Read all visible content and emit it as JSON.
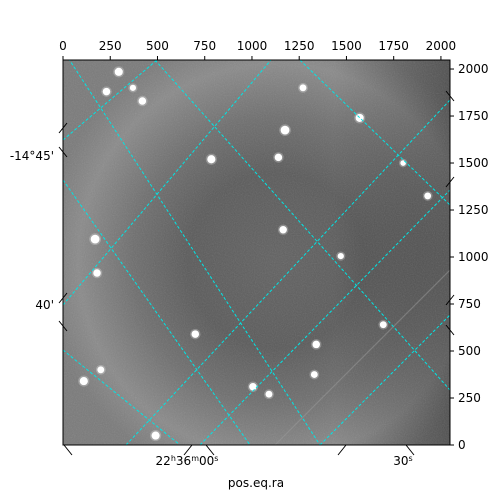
{
  "chart_data": {
    "type": "heatmap",
    "title": "",
    "xlabel": "pos.eq.ra",
    "ylabel": "",
    "pixel_axes": {
      "x": {
        "range": [
          0,
          2048
        ],
        "ticks": [
          0,
          250,
          500,
          750,
          1000,
          1250,
          1500,
          1750,
          2000
        ],
        "label_side": "top"
      },
      "y": {
        "range": [
          0,
          2048
        ],
        "ticks": [
          0,
          250,
          500,
          750,
          1000,
          1250,
          1500,
          1750,
          2000
        ],
        "label_side": "right"
      }
    },
    "world_labels": {
      "ra": [
        "22h36m00s",
        "30s"
      ],
      "dec": [
        "-14°45'",
        "40'"
      ]
    },
    "grid": true,
    "grid_color": "#00e5e5",
    "image_colormap": "gray",
    "stars": [
      {
        "x": 295,
        "y": 1985,
        "brightness": 0.9
      },
      {
        "x": 230,
        "y": 1880,
        "brightness": 0.8
      },
      {
        "x": 420,
        "y": 1830,
        "brightness": 0.8
      },
      {
        "x": 1175,
        "y": 1675,
        "brightness": 1.0
      },
      {
        "x": 1570,
        "y": 1740,
        "brightness": 0.9
      },
      {
        "x": 785,
        "y": 1520,
        "brightness": 0.9
      },
      {
        "x": 1140,
        "y": 1530,
        "brightness": 0.8
      },
      {
        "x": 1165,
        "y": 1145,
        "brightness": 0.8
      },
      {
        "x": 170,
        "y": 1095,
        "brightness": 1.0
      },
      {
        "x": 180,
        "y": 915,
        "brightness": 0.8
      },
      {
        "x": 700,
        "y": 590,
        "brightness": 0.8
      },
      {
        "x": 1340,
        "y": 535,
        "brightness": 0.8
      },
      {
        "x": 1330,
        "y": 375,
        "brightness": 0.7
      },
      {
        "x": 110,
        "y": 340,
        "brightness": 0.9
      },
      {
        "x": 200,
        "y": 400,
        "brightness": 0.7
      },
      {
        "x": 1005,
        "y": 310,
        "brightness": 0.8
      },
      {
        "x": 1090,
        "y": 270,
        "brightness": 0.7
      },
      {
        "x": 490,
        "y": 50,
        "brightness": 0.9
      },
      {
        "x": 1930,
        "y": 1325,
        "brightness": 0.7
      },
      {
        "x": 1695,
        "y": 640,
        "brightness": 0.7
      },
      {
        "x": 1470,
        "y": 1005,
        "brightness": 0.6
      },
      {
        "x": 370,
        "y": 1900,
        "brightness": 0.6
      },
      {
        "x": 1270,
        "y": 1900,
        "brightness": 0.7
      },
      {
        "x": 1800,
        "y": 1500,
        "brightness": 0.5
      }
    ]
  }
}
